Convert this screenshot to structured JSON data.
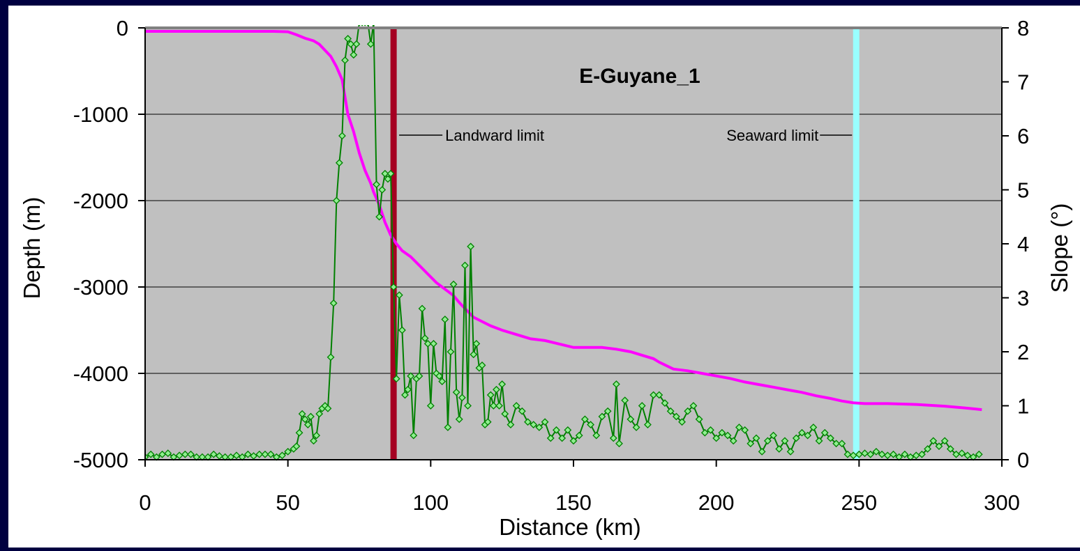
{
  "colors": {
    "frame": "#000040",
    "background": "#ffffff",
    "plot_area": "#c0c0c0",
    "gridline": "#000000",
    "depth_line": "#ff00ff",
    "slope_line": "#008000",
    "slope_marker_fill": "#90ee90",
    "landward_line": "#a50021",
    "seaward_line": "#99ffff"
  },
  "chart_data": {
    "type": "line",
    "title": "E-Guyane_1",
    "xlabel": "Distance (km)",
    "ylabel": "Depth (m)",
    "y2label": "Slope (°)",
    "xlim": [
      0,
      300
    ],
    "ylim": [
      -5000,
      0
    ],
    "y2lim": [
      0,
      8
    ],
    "xticks": [
      0,
      50,
      100,
      150,
      200,
      250,
      300
    ],
    "yticks": [
      0,
      -1000,
      -2000,
      -3000,
      -4000,
      -5000
    ],
    "y2ticks": [
      8,
      7,
      6,
      5,
      4,
      3,
      2,
      1,
      0
    ],
    "grid": "horizontal",
    "legend": "none",
    "vertical_lines": [
      {
        "x": 87,
        "label": "Landward limit"
      },
      {
        "x": 249,
        "label": "Seaward limit"
      }
    ],
    "series": [
      {
        "axis": "left",
        "marker": "none",
        "x": [
          0,
          15,
          30,
          45,
          50,
          53,
          56,
          59,
          61,
          63,
          65,
          67,
          69,
          70,
          71,
          73,
          75,
          77,
          79,
          80,
          82,
          84,
          86,
          88,
          90,
          93,
          96,
          99,
          102,
          104,
          106,
          108,
          110,
          112,
          115,
          118,
          121,
          125,
          130,
          135,
          140,
          145,
          150,
          155,
          160,
          165,
          170,
          175,
          178,
          180,
          185,
          190,
          195,
          200,
          205,
          210,
          215,
          220,
          225,
          230,
          235,
          240,
          244,
          248,
          252,
          260,
          270,
          280,
          287,
          293
        ],
        "y": [
          -40,
          -40,
          -40,
          -40,
          -45,
          -80,
          -120,
          -150,
          -190,
          -260,
          -330,
          -450,
          -600,
          -800,
          -1000,
          -1200,
          -1450,
          -1650,
          -1800,
          -1900,
          -2050,
          -2250,
          -2400,
          -2500,
          -2580,
          -2650,
          -2750,
          -2850,
          -2950,
          -3000,
          -3050,
          -3100,
          -3180,
          -3250,
          -3350,
          -3400,
          -3450,
          -3500,
          -3550,
          -3600,
          -3620,
          -3660,
          -3700,
          -3700,
          -3700,
          -3720,
          -3750,
          -3800,
          -3830,
          -3870,
          -3950,
          -3970,
          -4000,
          -4030,
          -4060,
          -4100,
          -4130,
          -4160,
          -4190,
          -4220,
          -4260,
          -4290,
          -4320,
          -4340,
          -4350,
          -4350,
          -4360,
          -4380,
          -4400,
          -4420
        ]
      },
      {
        "axis": "right",
        "marker": "diamond",
        "x": [
          0,
          2,
          4,
          6,
          8,
          10,
          12,
          14,
          16,
          18,
          20,
          22,
          24,
          26,
          28,
          30,
          32,
          34,
          36,
          38,
          40,
          42,
          44,
          46,
          48,
          50,
          52,
          53,
          54,
          55,
          56,
          57,
          58,
          59,
          60,
          61,
          62,
          63,
          64,
          65,
          66,
          67,
          68,
          69,
          70,
          71,
          72,
          73,
          74,
          75,
          76,
          77,
          78,
          79,
          80,
          81,
          82,
          83,
          84,
          85,
          86,
          87,
          88,
          89,
          90,
          91,
          92,
          93,
          94,
          95,
          96,
          97,
          98,
          99,
          100,
          101,
          102,
          103,
          104,
          105,
          106,
          107,
          108,
          109,
          110,
          111,
          112,
          113,
          114,
          115,
          116,
          117,
          118,
          119,
          120,
          121,
          122,
          123,
          124,
          125,
          126,
          128,
          130,
          132,
          134,
          136,
          138,
          140,
          142,
          144,
          146,
          148,
          150,
          152,
          154,
          156,
          158,
          160,
          162,
          164,
          165,
          166,
          168,
          170,
          172,
          174,
          176,
          178,
          180,
          182,
          184,
          186,
          188,
          190,
          192,
          194,
          196,
          198,
          200,
          202,
          204,
          206,
          208,
          210,
          212,
          214,
          216,
          218,
          220,
          222,
          224,
          226,
          228,
          230,
          232,
          234,
          236,
          238,
          240,
          242,
          244,
          246,
          248,
          250,
          252,
          254,
          256,
          258,
          260,
          262,
          264,
          266,
          268,
          270,
          272,
          274,
          276,
          278,
          280,
          282,
          284,
          286,
          288,
          290,
          292
        ],
        "y": [
          0.05,
          0.1,
          0.05,
          0.1,
          0.12,
          0.05,
          0.08,
          0.1,
          0.1,
          0.05,
          0.05,
          0.05,
          0.1,
          0.07,
          0.05,
          0.05,
          0.08,
          0.05,
          0.1,
          0.07,
          0.1,
          0.1,
          0.1,
          0.05,
          0.08,
          0.15,
          0.2,
          0.25,
          0.5,
          0.85,
          0.75,
          0.65,
          0.8,
          0.35,
          0.45,
          0.85,
          0.95,
          1.0,
          0.95,
          1.9,
          2.9,
          4.8,
          5.5,
          6.0,
          7.4,
          7.8,
          7.7,
          7.5,
          7.7,
          8.1,
          8.1,
          8.1,
          8.1,
          7.7,
          8.1,
          5.1,
          4.5,
          5.0,
          5.3,
          5.2,
          5.3,
          3.2,
          1.5,
          3.05,
          2.4,
          1.2,
          1.3,
          1.55,
          0.45,
          1.5,
          1.55,
          2.8,
          2.25,
          2.15,
          1.0,
          2.15,
          1.6,
          1.55,
          1.45,
          2.6,
          0.6,
          2.0,
          3.25,
          1.25,
          0.75,
          1.15,
          3.6,
          1.0,
          3.95,
          1.95,
          2.15,
          1.7,
          1.75,
          0.65,
          0.7,
          1.2,
          1.0,
          1.3,
          1.0,
          1.4,
          0.85,
          0.65,
          1.0,
          0.9,
          0.7,
          0.65,
          0.6,
          0.7,
          0.4,
          0.55,
          0.4,
          0.55,
          0.35,
          0.45,
          0.75,
          0.65,
          0.45,
          0.8,
          0.9,
          0.4,
          1.4,
          0.3,
          1.1,
          0.75,
          0.6,
          1.0,
          0.65,
          1.2,
          1.2,
          1.05,
          0.9,
          0.8,
          0.7,
          0.9,
          1.0,
          0.75,
          0.5,
          0.55,
          0.4,
          0.5,
          0.45,
          0.35,
          0.6,
          0.55,
          0.3,
          0.4,
          0.15,
          0.35,
          0.45,
          0.2,
          0.35,
          0.15,
          0.4,
          0.5,
          0.45,
          0.6,
          0.35,
          0.5,
          0.4,
          0.3,
          0.3,
          0.1,
          0.08,
          0.1,
          0.12,
          0.1,
          0.15,
          0.1,
          0.08,
          0.1,
          0.05,
          0.1,
          0.05,
          0.08,
          0.1,
          0.2,
          0.35,
          0.25,
          0.35,
          0.2,
          0.1,
          0.12,
          0.08,
          0.05,
          0.1
        ]
      }
    ]
  }
}
